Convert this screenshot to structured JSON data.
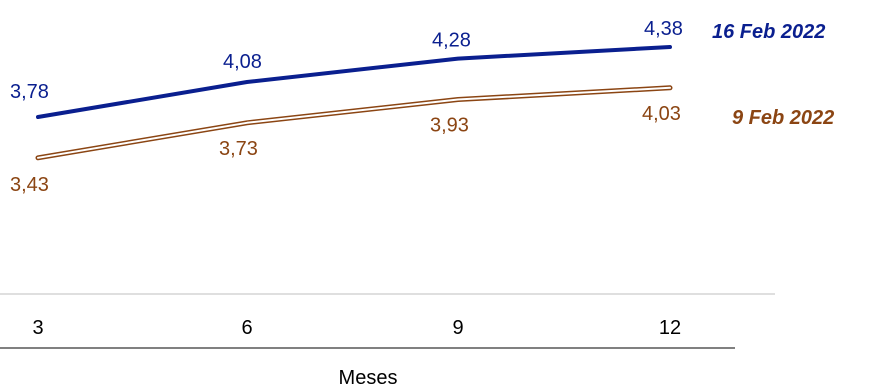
{
  "chart_data": {
    "type": "line",
    "x": [
      "3",
      "6",
      "9",
      "12"
    ],
    "xlabel": "Meses",
    "series": [
      {
        "name": "16 Feb 2022",
        "values": [
          3.78,
          4.08,
          4.28,
          4.38
        ],
        "labels": [
          "3,78",
          "4,08",
          "4,28",
          "4,38"
        ],
        "color": "#0a1f8f",
        "style": "solid"
      },
      {
        "name": "9 Feb 2022",
        "values": [
          3.43,
          3.73,
          3.93,
          4.03
        ],
        "labels": [
          "3,43",
          "3,73",
          "3,93",
          "4,03"
        ],
        "color": "#8b4513",
        "style": "double"
      }
    ],
    "legend_placement": "right, next to line ends"
  }
}
